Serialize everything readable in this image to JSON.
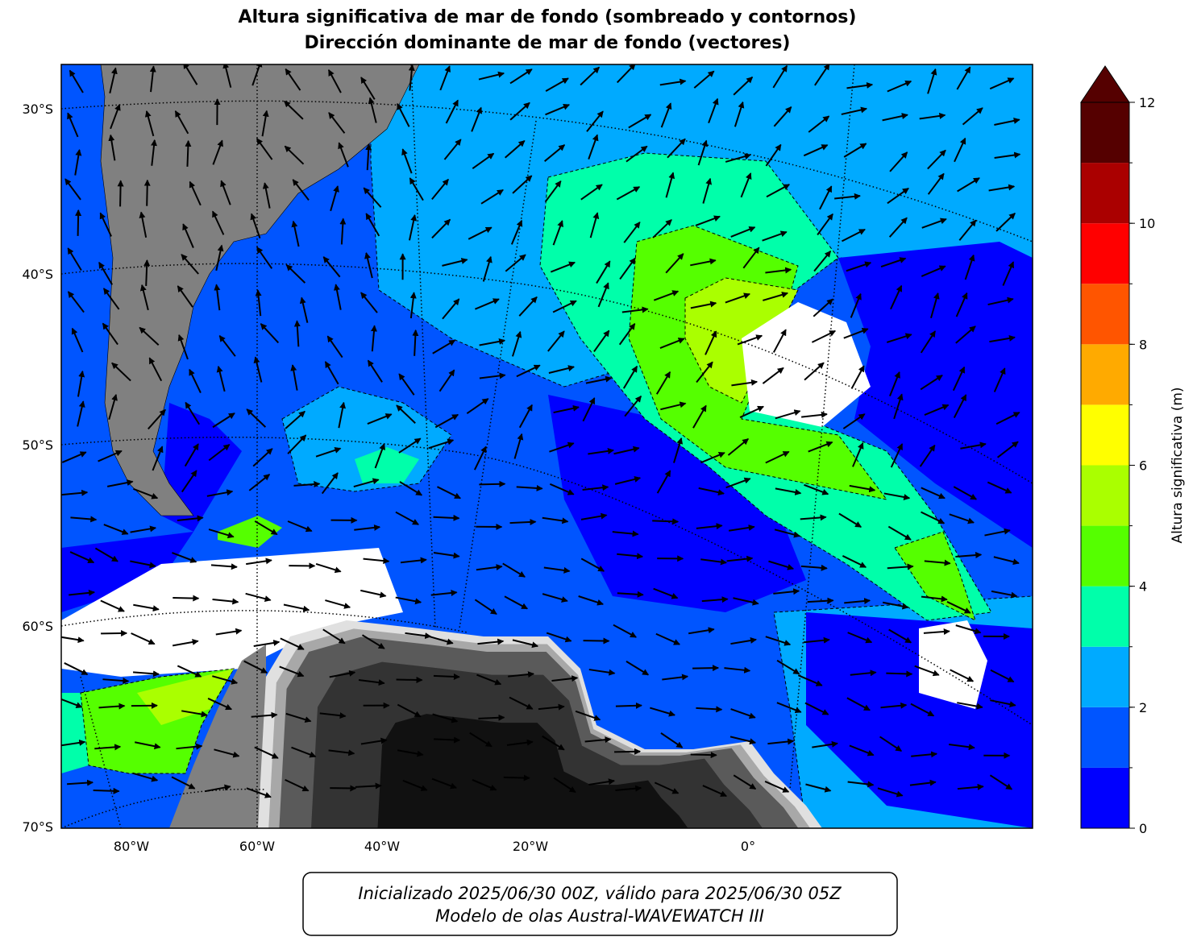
{
  "title": [
    "Altura significativa de mar de fondo (sombreado y contornos)",
    "Dirección dominante de mar de fondo (vectores)"
  ],
  "map": {
    "lat_labels": [
      "30°S",
      "40°S",
      "50°S",
      "60°S",
      "70°S"
    ],
    "lon_labels": [
      "80°W",
      "60°W",
      "40°W",
      "20°W",
      "0°"
    ]
  },
  "colorbar": {
    "label": "Altura significativa (m)",
    "levels": [
      0,
      1,
      2,
      3,
      4,
      5,
      6,
      7,
      8,
      9,
      10,
      11,
      12
    ],
    "colors": [
      "#0000ff",
      "#0055ff",
      "#00aaff",
      "#00ffaa",
      "#55ff00",
      "#aaff00",
      "#ffff00",
      "#ffaa00",
      "#ff5500",
      "#ff0000",
      "#aa0000",
      "#550000"
    ],
    "extend_color": "#550000",
    "ticks": [
      0,
      2,
      4,
      6,
      8,
      10,
      12
    ]
  },
  "footer": [
    "Inicializado 2025/06/30 00Z, válido para 2025/06/30 05Z",
    "Modelo de olas Austral-WAVEWATCH III"
  ]
}
